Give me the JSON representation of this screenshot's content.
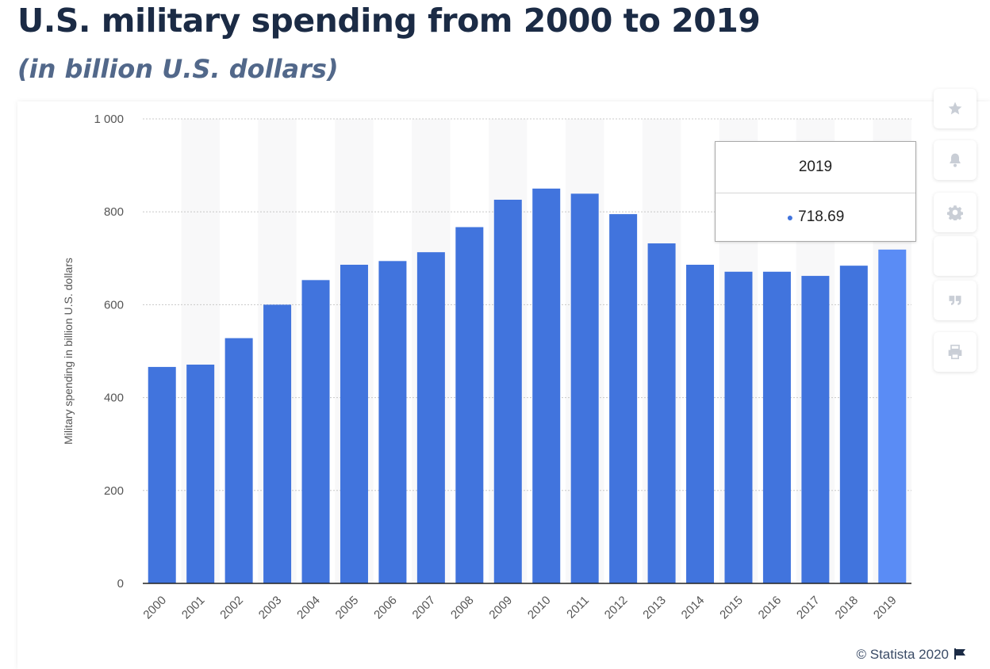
{
  "header": {
    "title": "U.S. military spending from 2000 to 2019",
    "subtitle": "(in billion U.S. dollars)"
  },
  "chart_data": {
    "type": "bar",
    "title": "U.S. military spending from 2000 to 2019",
    "subtitle": "(in billion U.S. dollars)",
    "xlabel": "",
    "ylabel": "Military spending in billion U.S. dollars",
    "categories": [
      "2000",
      "2001",
      "2002",
      "2003",
      "2004",
      "2005",
      "2006",
      "2007",
      "2008",
      "2009",
      "2010",
      "2011",
      "2012",
      "2013",
      "2014",
      "2015",
      "2016",
      "2017",
      "2018",
      "2019"
    ],
    "values": [
      466,
      471,
      528,
      600,
      653,
      686,
      694,
      713,
      767,
      826,
      850,
      839,
      795,
      732,
      686,
      671,
      671,
      662,
      684,
      718.69
    ],
    "ylim": [
      0,
      1000
    ],
    "yticks": [
      0,
      200,
      400,
      600,
      800,
      1000
    ],
    "ytick_labels": [
      "0",
      "200",
      "400",
      "600",
      "800",
      "1 000"
    ],
    "grid": true,
    "bar_color": "#4174dd",
    "highlight_color": "#5a8cf5",
    "highlight_index": 19
  },
  "tooltip": {
    "year": "2019",
    "value": "718.69"
  },
  "sidebar": {
    "buttons": [
      {
        "name": "favorite-button",
        "icon": "star-icon"
      },
      {
        "name": "notification-button",
        "icon": "bell-icon"
      },
      {
        "name": "settings-button",
        "icon": "gear-icon"
      },
      {
        "name": "share-button",
        "icon": "share-icon"
      },
      {
        "name": "cite-button",
        "icon": "quote-icon"
      },
      {
        "name": "print-button",
        "icon": "print-icon"
      }
    ]
  },
  "footer": {
    "copyright": "© Statista 2020"
  }
}
